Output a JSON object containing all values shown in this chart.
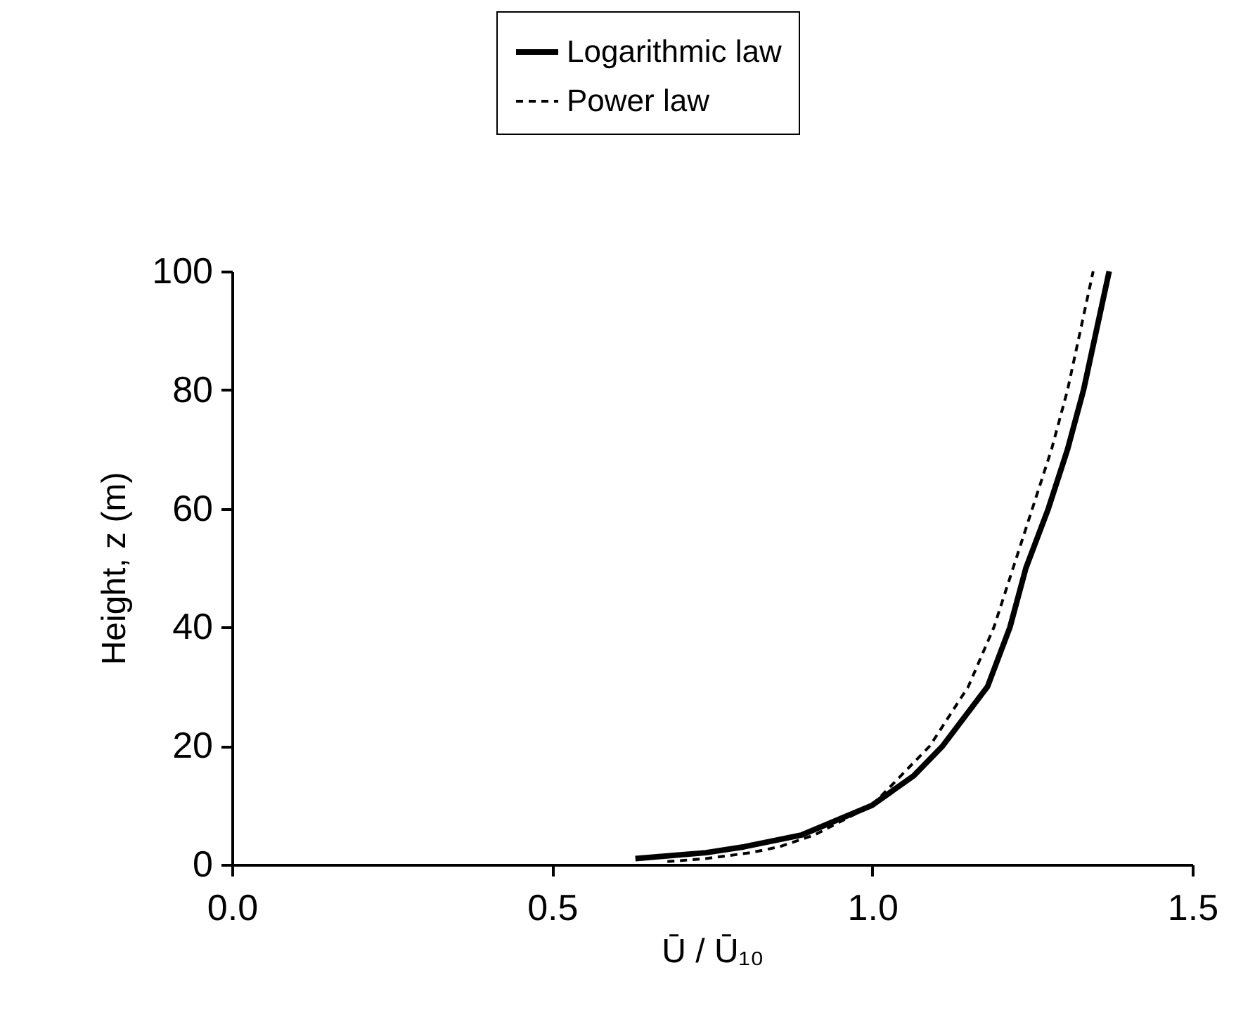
{
  "chart_data": {
    "type": "line",
    "xlabel": "Ū / Ū₁₀",
    "ylabel": "Height, z (m)",
    "xlim": [
      0,
      1.5
    ],
    "ylim": [
      0,
      100
    ],
    "xticks": [
      {
        "value": 0,
        "label": "0.0"
      },
      {
        "value": 0.5,
        "label": "0.5"
      },
      {
        "value": 1,
        "label": "1.0"
      },
      {
        "value": 1.5,
        "label": "1.5"
      }
    ],
    "yticks": [
      0,
      20,
      40,
      60,
      80,
      100
    ],
    "legend": "top",
    "grid": false,
    "series": [
      {
        "name": "Logarithmic law",
        "color": "#000000",
        "line_style": "solid",
        "x": [
          0.63,
          0.74,
          0.8,
          0.89,
          1.0,
          1.065,
          1.11,
          1.18,
          1.215,
          1.24,
          1.275,
          1.305,
          1.33,
          1.35,
          1.37
        ],
        "values": [
          1,
          2,
          3,
          5,
          10,
          15,
          20,
          30,
          40,
          50,
          60,
          70,
          80,
          90,
          100
        ]
      },
      {
        "name": "Power law",
        "color": "#000000",
        "line_style": "dashed",
        "x": [
          0.68,
          0.74,
          0.81,
          0.855,
          0.91,
          1.0,
          1.09,
          1.15,
          1.19,
          1.22,
          1.25,
          1.28,
          1.305,
          1.325,
          1.345
        ],
        "values": [
          0.5,
          1,
          2,
          3,
          5,
          10,
          20,
          30,
          40,
          50,
          60,
          70,
          80,
          90,
          100
        ]
      }
    ]
  }
}
